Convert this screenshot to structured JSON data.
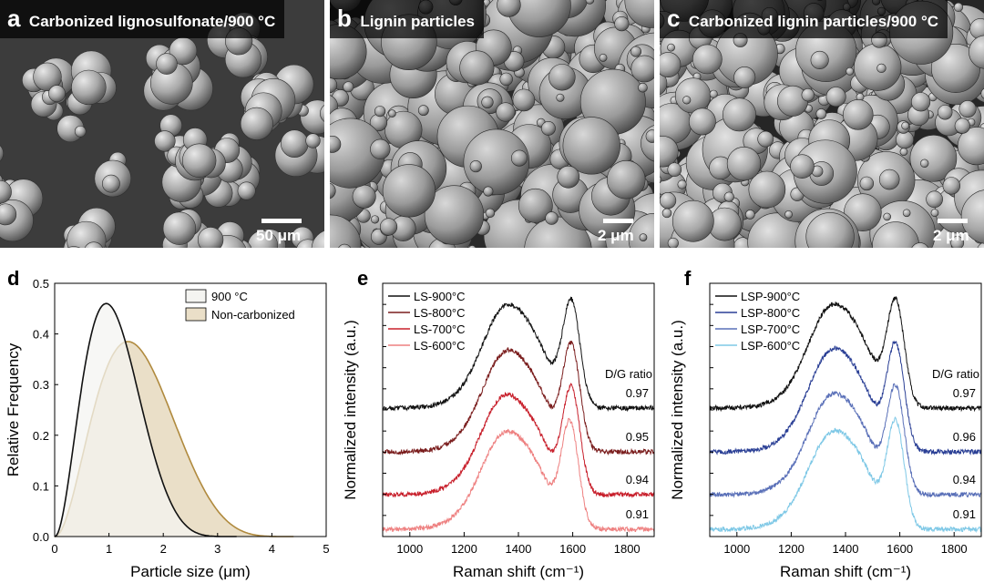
{
  "panels": {
    "a": {
      "letter": "a",
      "title": "Carbonized lignosulfonate/900 °C",
      "scale": "50 μm"
    },
    "b": {
      "letter": "b",
      "title": "Lignin particles",
      "scale": "2 μm"
    },
    "c": {
      "letter": "c",
      "title": "Carbonized lignin particles/900 °C",
      "scale": "2 μm"
    },
    "d": {
      "letter": "d"
    },
    "e": {
      "letter": "e",
      "ratio_title": "D/G ratio"
    },
    "f": {
      "letter": "f",
      "ratio_title": "D/G ratio"
    }
  },
  "chart_data": [
    {
      "panel": "d",
      "type": "area",
      "xlabel": "Particle size (μm)",
      "ylabel": "Relative Frequency",
      "xlim": [
        0,
        5
      ],
      "ylim": [
        0,
        0.5
      ],
      "xticks": [
        "0",
        "1",
        "2",
        "3",
        "4",
        "5"
      ],
      "yticks": [
        "0.0",
        "0.1",
        "0.2",
        "0.3",
        "0.4",
        "0.5"
      ],
      "legend_position": "top-right",
      "series": [
        {
          "name": "900 °C",
          "peak_x": 0.95,
          "peak_y": 0.46,
          "x_max": 3.35,
          "line_color": "#111111",
          "fill_color": "#f4f4f1"
        },
        {
          "name": "Non-carbonized",
          "peak_x": 1.35,
          "peak_y": 0.385,
          "x_max": 4.4,
          "line_color": "#b08a3e",
          "fill_color": "#eadfc8"
        }
      ]
    },
    {
      "panel": "e",
      "type": "line",
      "xlabel": "Raman shift (cm⁻¹)",
      "ylabel": "Normalized intensity (a.u.)",
      "xlim": [
        900,
        1900
      ],
      "xticks": [
        "1000",
        "1200",
        "1400",
        "1600",
        "1800"
      ],
      "legend_position": "top-left",
      "series": [
        {
          "name": "LS-900°C",
          "dg_ratio": "0.97",
          "color": "#111111",
          "offset": 3,
          "d_peak": 1350,
          "g_peak": 1595
        },
        {
          "name": "LS-800°C",
          "dg_ratio": "0.95",
          "color": "#7a1d1d",
          "offset": 2,
          "d_peak": 1350,
          "g_peak": 1595
        },
        {
          "name": "LS-700°C",
          "dg_ratio": "0.94",
          "color": "#c8202c",
          "offset": 1,
          "d_peak": 1345,
          "g_peak": 1595
        },
        {
          "name": "LS-600°C",
          "dg_ratio": "0.91",
          "color": "#ee8080",
          "offset": 0,
          "d_peak": 1345,
          "g_peak": 1590
        }
      ]
    },
    {
      "panel": "f",
      "type": "line",
      "xlabel": "Raman shift (cm⁻¹)",
      "ylabel": "Normalized intensity (a.u.)",
      "xlim": [
        900,
        1900
      ],
      "xticks": [
        "1000",
        "1200",
        "1400",
        "1600",
        "1800"
      ],
      "legend_position": "top-left",
      "series": [
        {
          "name": "LSP-900°C",
          "dg_ratio": "0.97",
          "color": "#111111",
          "offset": 3,
          "d_peak": 1345,
          "g_peak": 1585
        },
        {
          "name": "LSP-800°C",
          "dg_ratio": "0.96",
          "color": "#2a3f95",
          "offset": 2,
          "d_peak": 1345,
          "g_peak": 1585
        },
        {
          "name": "LSP-700°C",
          "dg_ratio": "0.94",
          "color": "#5a70b8",
          "offset": 1,
          "d_peak": 1345,
          "g_peak": 1585
        },
        {
          "name": "LSP-600°C",
          "dg_ratio": "0.91",
          "color": "#7ec8e6",
          "offset": 0,
          "d_peak": 1345,
          "g_peak": 1585
        }
      ]
    }
  ]
}
